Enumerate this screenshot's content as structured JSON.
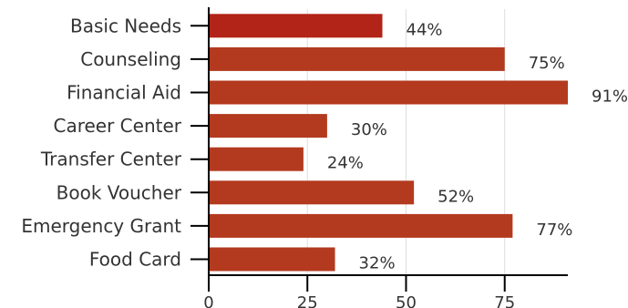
{
  "chart_data": {
    "type": "bar",
    "orientation": "horizontal",
    "categories": [
      "Basic Needs",
      "Counseling",
      "Financial Aid",
      "Career Center",
      "Transfer Center",
      "Book Voucher",
      "Emergency Grant",
      "Food Card"
    ],
    "values": [
      44,
      75,
      91,
      30,
      24,
      52,
      77,
      32
    ],
    "value_labels": [
      "44%",
      "75%",
      "91%",
      "30%",
      "24%",
      "52%",
      "77%",
      "32%"
    ],
    "title": "",
    "xlabel": "",
    "ylabel": "",
    "xlim": [
      0,
      91
    ],
    "xticks": [
      0,
      25,
      50,
      75
    ],
    "xtick_labels": [
      "0",
      "25",
      "50",
      "75"
    ],
    "grid": "vertical",
    "legend": "none",
    "colors": {
      "first_bar": "#b22417",
      "bars": "#b33a1f",
      "grid": "#dddddd",
      "axis": "#000000",
      "text": "#333333"
    }
  }
}
